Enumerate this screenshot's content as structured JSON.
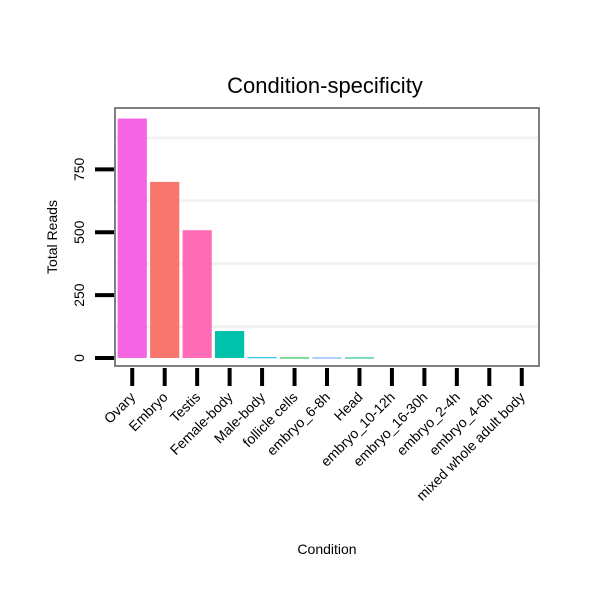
{
  "chart_data": {
    "type": "bar",
    "title": "Condition-specificity",
    "xlabel": "Condition",
    "ylabel": "Total Reads",
    "categories": [
      "Ovary",
      "Embryo",
      "Testis",
      "Female-body",
      "Male-body",
      "follicle cells",
      "embryo_6-8h",
      "Head",
      "embryo_10-12h",
      "embryo_16-30h",
      "embryo_2-4h",
      "embryo_4-6h",
      "mixed whole adult body"
    ],
    "values": [
      952,
      700,
      508,
      107,
      3,
      2,
      2,
      2,
      0,
      0,
      0,
      0,
      0
    ],
    "colors": [
      "#F564E3",
      "#F8766D",
      "#FF6BB5",
      "#00C1AA",
      "#00B8E5",
      "#00BA38",
      "#619CFF",
      "#00BF7D",
      "#B79F00",
      "#DE8C00",
      "#7CAE00",
      "#00A9FF",
      "#C77CFF"
    ],
    "yticks": [
      0,
      250,
      500,
      750
    ],
    "ylim": [
      -28,
      990
    ],
    "grid": true,
    "legend": "none"
  }
}
